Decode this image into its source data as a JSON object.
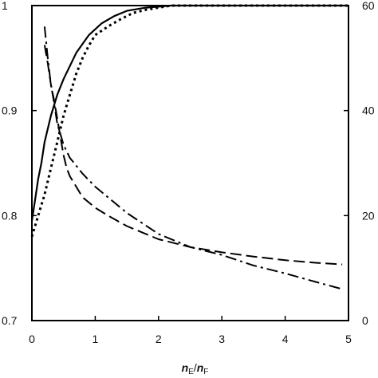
{
  "chart_data": {
    "type": "line",
    "title": "",
    "xlabel": {
      "main": "n",
      "sub": "E",
      "slash": "/",
      "main2": "n",
      "sub2": "F"
    },
    "ylabel_left": "",
    "ylabel_right": "",
    "xlim": [
      0,
      5
    ],
    "ylim_left": [
      0.7,
      1.0
    ],
    "ylim_right": [
      0,
      60
    ],
    "x_ticks": [
      "0",
      "1",
      "2",
      "3",
      "4",
      "5"
    ],
    "y_left_ticks": [
      "0.7",
      "0.8",
      "0.9",
      "1"
    ],
    "y_right_ticks": [
      "0",
      "20",
      "40",
      "60"
    ],
    "grid": false,
    "legend": "none",
    "colors": {
      "line": "#000000",
      "background": "#ffffff"
    },
    "series": [
      {
        "axis": "left",
        "style": "solid",
        "points": [
          [
            0.0,
            0.795
          ],
          [
            0.05,
            0.815
          ],
          [
            0.1,
            0.835
          ],
          [
            0.15,
            0.85
          ],
          [
            0.2,
            0.87
          ],
          [
            0.3,
            0.895
          ],
          [
            0.4,
            0.915
          ],
          [
            0.5,
            0.93
          ],
          [
            0.7,
            0.955
          ],
          [
            0.9,
            0.972
          ],
          [
            1.1,
            0.983
          ],
          [
            1.3,
            0.99
          ],
          [
            1.5,
            0.995
          ],
          [
            1.8,
            0.998
          ],
          [
            2.2,
            1.0
          ],
          [
            2.5,
            1.0
          ],
          [
            3.0,
            1.0
          ],
          [
            4.0,
            1.0
          ],
          [
            5.0,
            1.0
          ]
        ]
      },
      {
        "axis": "left",
        "style": "dotted",
        "points": [
          [
            0.0,
            0.78
          ],
          [
            0.1,
            0.8
          ],
          [
            0.2,
            0.82
          ],
          [
            0.3,
            0.845
          ],
          [
            0.4,
            0.87
          ],
          [
            0.5,
            0.895
          ],
          [
            0.6,
            0.915
          ],
          [
            0.7,
            0.935
          ],
          [
            0.8,
            0.95
          ],
          [
            0.9,
            0.962
          ],
          [
            1.0,
            0.972
          ],
          [
            1.2,
            0.98
          ],
          [
            1.4,
            0.987
          ],
          [
            1.6,
            0.993
          ],
          [
            1.8,
            0.996
          ],
          [
            2.0,
            0.998
          ],
          [
            2.2,
            1.0
          ],
          [
            2.5,
            1.0
          ],
          [
            3.0,
            1.0
          ],
          [
            4.0,
            1.0
          ],
          [
            5.0,
            1.0
          ]
        ]
      },
      {
        "axis": "right",
        "style": "dash",
        "points": [
          [
            0.2,
            52.5
          ],
          [
            0.25,
            49
          ],
          [
            0.3,
            45
          ],
          [
            0.35,
            42
          ],
          [
            0.4,
            38.5
          ],
          [
            0.45,
            35
          ],
          [
            0.5,
            31.5
          ],
          [
            0.55,
            29
          ],
          [
            0.6,
            27.5
          ],
          [
            0.7,
            25.5
          ],
          [
            0.8,
            23.5
          ],
          [
            1.0,
            21.5
          ],
          [
            1.2,
            20
          ],
          [
            1.5,
            18
          ],
          [
            2.0,
            15.5
          ],
          [
            2.5,
            14
          ],
          [
            3.0,
            13
          ],
          [
            3.5,
            12.2
          ],
          [
            4.0,
            11.5
          ],
          [
            4.5,
            11
          ],
          [
            4.9,
            10.7
          ]
        ]
      },
      {
        "axis": "right",
        "style": "dash-dot",
        "points": [
          [
            0.2,
            56
          ],
          [
            0.25,
            50
          ],
          [
            0.3,
            45
          ],
          [
            0.35,
            41.5
          ],
          [
            0.4,
            37.5
          ],
          [
            0.5,
            33.5
          ],
          [
            0.6,
            31
          ],
          [
            0.7,
            29.5
          ],
          [
            0.8,
            28
          ],
          [
            1.0,
            25.5
          ],
          [
            1.2,
            23.5
          ],
          [
            1.5,
            20.5
          ],
          [
            2.0,
            16.5
          ],
          [
            2.5,
            14
          ],
          [
            3.0,
            12.5
          ],
          [
            3.5,
            10.5
          ],
          [
            4.0,
            9
          ],
          [
            4.5,
            7.3
          ],
          [
            4.9,
            6
          ]
        ]
      }
    ]
  }
}
